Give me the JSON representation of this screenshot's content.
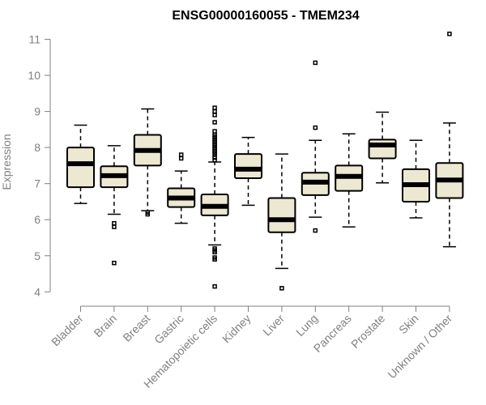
{
  "chart_data": {
    "type": "boxplot",
    "title": "ENSG00000160055 - TMEM234",
    "xlabel": "",
    "ylabel": "Expression",
    "ylim": [
      4,
      11
    ],
    "yticks": [
      4,
      5,
      6,
      7,
      8,
      9,
      10,
      11
    ],
    "colors": {
      "box_fill": "#ede8d2",
      "stroke": "#000000",
      "axis": "#808080"
    },
    "categories": [
      "Bladder",
      "Brain",
      "Breast",
      "Gastric",
      "Hematopoietic cells",
      "Kidney",
      "Liver",
      "Lung",
      "Pancreas",
      "Prostate",
      "Skin",
      "Unknown / Other"
    ],
    "boxes": [
      {
        "name": "Bladder",
        "whisker_low": 6.45,
        "q1": 6.9,
        "median": 7.55,
        "q3": 8.0,
        "whisker_high": 8.62,
        "outliers": []
      },
      {
        "name": "Brain",
        "whisker_low": 6.15,
        "q1": 6.9,
        "median": 7.22,
        "q3": 7.48,
        "whisker_high": 8.05,
        "outliers": [
          5.9,
          5.8,
          4.8
        ]
      },
      {
        "name": "Breast",
        "whisker_low": 6.25,
        "q1": 7.5,
        "median": 7.92,
        "q3": 8.35,
        "whisker_high": 9.07,
        "outliers": [
          6.2,
          6.15
        ]
      },
      {
        "name": "Gastric",
        "whisker_low": 5.9,
        "q1": 6.35,
        "median": 6.6,
        "q3": 6.87,
        "whisker_high": 7.35,
        "outliers": [
          7.7,
          7.8
        ]
      },
      {
        "name": "Hematopoietic cells",
        "whisker_low": 5.3,
        "q1": 6.12,
        "median": 6.37,
        "q3": 6.7,
        "whisker_high": 7.6,
        "outliers": [
          7.65,
          7.72,
          7.8,
          7.85,
          7.9,
          7.95,
          8.0,
          8.05,
          8.1,
          8.15,
          8.2,
          8.25,
          8.3,
          8.35,
          8.45,
          8.7,
          8.9,
          9.0,
          9.1,
          5.2,
          5.15,
          5.1,
          4.95,
          4.9,
          4.15
        ]
      },
      {
        "name": "Kidney",
        "whisker_low": 6.4,
        "q1": 7.15,
        "median": 7.4,
        "q3": 7.82,
        "whisker_high": 8.28,
        "outliers": []
      },
      {
        "name": "Liver",
        "whisker_low": 4.65,
        "q1": 5.65,
        "median": 6.0,
        "q3": 6.6,
        "whisker_high": 7.82,
        "outliers": [
          4.1
        ]
      },
      {
        "name": "Lung",
        "whisker_low": 6.07,
        "q1": 6.68,
        "median": 7.04,
        "q3": 7.3,
        "whisker_high": 8.2,
        "outliers": [
          8.55,
          10.35,
          5.7
        ]
      },
      {
        "name": "Pancreas",
        "whisker_low": 5.8,
        "q1": 6.8,
        "median": 7.2,
        "q3": 7.5,
        "whisker_high": 8.38,
        "outliers": []
      },
      {
        "name": "Prostate",
        "whisker_low": 7.02,
        "q1": 7.7,
        "median": 8.07,
        "q3": 8.22,
        "whisker_high": 8.98,
        "outliers": []
      },
      {
        "name": "Skin",
        "whisker_low": 6.05,
        "q1": 6.5,
        "median": 6.97,
        "q3": 7.4,
        "whisker_high": 8.2,
        "outliers": []
      },
      {
        "name": "Unknown / Other",
        "whisker_low": 5.25,
        "q1": 6.6,
        "median": 7.1,
        "q3": 7.57,
        "whisker_high": 8.68,
        "outliers": [
          11.15
        ]
      }
    ]
  }
}
